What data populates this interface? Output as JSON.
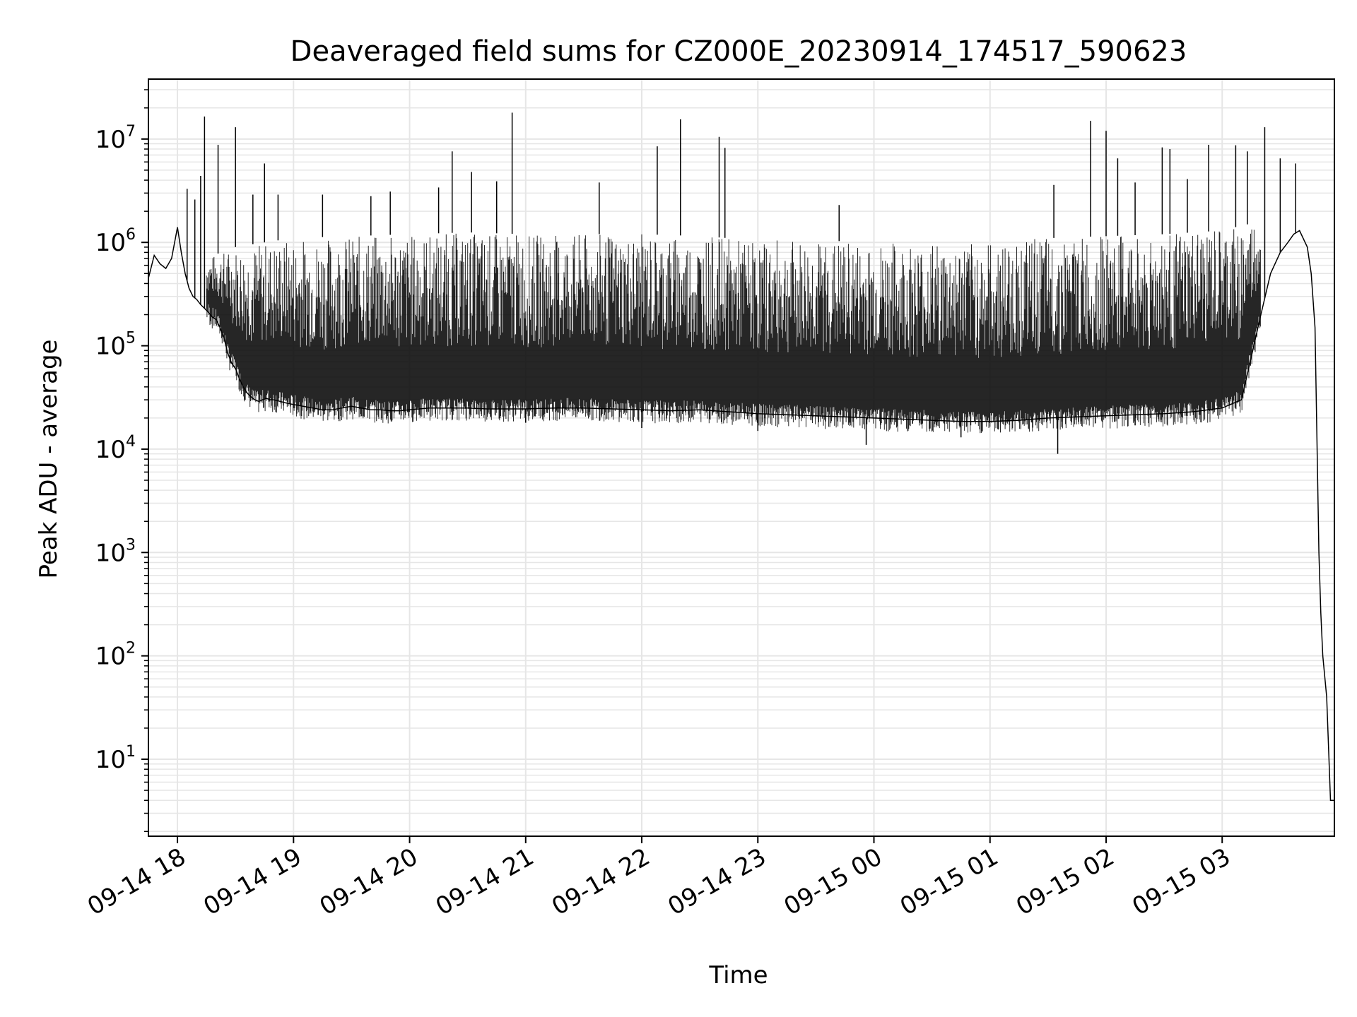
{
  "chart_data": {
    "type": "line",
    "title": "Deaveraged field sums for CZ000E_20230914_174517_590623",
    "xlabel": "Time",
    "ylabel": "Peak ADU - average",
    "yscale": "log",
    "grid": true,
    "line_color": "#000000",
    "grid_color": "#e6e6e6",
    "xlim": [
      "2023-09-14 17:45",
      "2023-09-15 03:58"
    ],
    "ylim": [
      1.8,
      38000000
    ],
    "x_ticks": [
      {
        "value": "2023-09-14 18:00",
        "label": "09-14 18"
      },
      {
        "value": "2023-09-14 19:00",
        "label": "09-14 19"
      },
      {
        "value": "2023-09-14 20:00",
        "label": "09-14 20"
      },
      {
        "value": "2023-09-14 21:00",
        "label": "09-14 21"
      },
      {
        "value": "2023-09-14 22:00",
        "label": "09-14 22"
      },
      {
        "value": "2023-09-14 23:00",
        "label": "09-14 23"
      },
      {
        "value": "2023-09-15 00:00",
        "label": "09-15 00"
      },
      {
        "value": "2023-09-15 01:00",
        "label": "09-15 01"
      },
      {
        "value": "2023-09-15 02:00",
        "label": "09-15 02"
      },
      {
        "value": "2023-09-15 03:00",
        "label": "09-15 03"
      }
    ],
    "y_ticks": [
      {
        "value": 10,
        "base": "10",
        "exp": "1"
      },
      {
        "value": 100,
        "base": "10",
        "exp": "2"
      },
      {
        "value": 1000,
        "base": "10",
        "exp": "3"
      },
      {
        "value": 10000,
        "base": "10",
        "exp": "4"
      },
      {
        "value": 100000,
        "base": "10",
        "exp": "5"
      },
      {
        "value": 1000000,
        "base": "10",
        "exp": "6"
      },
      {
        "value": 10000000,
        "base": "10",
        "exp": "7"
      }
    ],
    "series": [
      {
        "x": [
          "2023-09-14 17:45",
          "2023-09-14 17:48",
          "2023-09-14 17:51",
          "2023-09-14 17:54",
          "2023-09-14 17:57",
          "2023-09-14 18:00",
          "2023-09-14 18:02",
          "2023-09-14 18:04",
          "2023-09-14 18:06",
          "2023-09-14 18:08",
          "2023-09-14 18:10",
          "2023-09-14 18:12",
          "2023-09-14 18:14",
          "2023-09-14 18:16",
          "2023-09-14 18:18",
          "2023-09-14 18:20",
          "2023-09-14 18:22",
          "2023-09-14 18:24",
          "2023-09-14 18:26",
          "2023-09-14 18:28",
          "2023-09-14 18:30",
          "2023-09-14 18:32",
          "2023-09-14 18:34",
          "2023-09-14 18:36",
          "2023-09-14 18:38",
          "2023-09-14 18:40",
          "2023-09-14 18:42",
          "2023-09-14 18:44",
          "2023-09-14 18:46",
          "2023-09-14 18:48",
          "2023-09-14 18:50",
          "2023-09-14 18:53",
          "2023-09-14 18:56",
          "2023-09-14 19:00",
          "2023-09-14 19:05",
          "2023-09-14 19:10",
          "2023-09-14 19:15",
          "2023-09-14 19:20",
          "2023-09-14 19:25",
          "2023-09-14 19:30",
          "2023-09-14 19:35",
          "2023-09-14 19:40",
          "2023-09-14 19:45",
          "2023-09-14 19:50",
          "2023-09-14 19:55",
          "2023-09-14 20:00",
          "2023-09-14 20:10",
          "2023-09-14 20:20",
          "2023-09-14 20:30",
          "2023-09-14 20:40",
          "2023-09-14 20:50",
          "2023-09-14 21:00",
          "2023-09-14 21:15",
          "2023-09-14 21:30",
          "2023-09-14 21:45",
          "2023-09-14 22:00",
          "2023-09-14 22:15",
          "2023-09-14 22:30",
          "2023-09-14 22:45",
          "2023-09-14 23:00",
          "2023-09-14 23:15",
          "2023-09-14 23:30",
          "2023-09-14 23:45",
          "2023-09-15 00:00",
          "2023-09-15 00:15",
          "2023-09-15 00:30",
          "2023-09-15 00:45",
          "2023-09-15 01:00",
          "2023-09-15 01:15",
          "2023-09-15 01:30",
          "2023-09-15 01:45",
          "2023-09-15 02:00",
          "2023-09-15 02:15",
          "2023-09-15 02:30",
          "2023-09-15 02:45",
          "2023-09-15 03:00",
          "2023-09-15 03:10",
          "2023-09-15 03:20",
          "2023-09-15 03:25",
          "2023-09-15 03:30",
          "2023-09-15 03:34",
          "2023-09-15 03:37",
          "2023-09-15 03:40",
          "2023-09-15 03:44",
          "2023-09-15 03:46",
          "2023-09-15 03:48",
          "2023-09-15 03:50",
          "2023-09-15 03:51",
          "2023-09-15 03:52",
          "2023-09-15 03:54",
          "2023-09-15 03:56",
          "2023-09-15 03:58"
        ],
        "y": [
          450000,
          750000,
          620000,
          560000,
          700000,
          1400000,
          800000,
          500000,
          360000,
          300000,
          280000,
          250000,
          230000,
          210000,
          190000,
          180000,
          150000,
          120000,
          85000,
          68000,
          60000,
          48000,
          40000,
          35000,
          32000,
          30000,
          29000,
          30000,
          31000,
          30000,
          30000,
          29000,
          28000,
          27000,
          26000,
          25000,
          24000,
          24000,
          25000,
          26000,
          25000,
          24000,
          24000,
          23500,
          23500,
          24000,
          25000,
          25000,
          25000,
          24500,
          24500,
          24500,
          25000,
          25000,
          24500,
          24000,
          23500,
          24000,
          23000,
          22000,
          21500,
          21000,
          20500,
          20000,
          19500,
          19000,
          18500,
          18500,
          19000,
          20000,
          20500,
          21000,
          21500,
          22000,
          23000,
          25000,
          30000,
          200000,
          500000,
          800000,
          1000000,
          1200000,
          1300000,
          900000,
          500000,
          150000,
          1000,
          260,
          100,
          40,
          4,
          4
        ]
      }
    ],
    "envelope": {
      "x": [
        "2023-09-14 18:15",
        "2023-09-14 18:30",
        "2023-09-14 18:45",
        "2023-09-14 19:00",
        "2023-09-14 19:30",
        "2023-09-14 20:00",
        "2023-09-14 20:30",
        "2023-09-14 21:00",
        "2023-09-14 21:30",
        "2023-09-14 22:00",
        "2023-09-14 22:30",
        "2023-09-14 23:00",
        "2023-09-14 23:30",
        "2023-09-15 00:00",
        "2023-09-15 00:30",
        "2023-09-15 01:00",
        "2023-09-15 01:30",
        "2023-09-15 02:00",
        "2023-09-15 02:30",
        "2023-09-15 03:00",
        "2023-09-15 03:20"
      ],
      "upper": [
        700000,
        900000,
        1000000,
        1100000,
        1150000,
        1200000,
        1250000,
        1200000,
        1200000,
        1200000,
        1150000,
        1050000,
        1050000,
        1000000,
        1000000,
        1000000,
        1100000,
        1150000,
        1200000,
        1300000,
        1600000
      ]
    },
    "spikes": [
      {
        "x": "2023-09-14 18:05",
        "y": 3300000
      },
      {
        "x": "2023-09-14 18:09",
        "y": 2600000
      },
      {
        "x": "2023-09-14 18:12",
        "y": 4400000
      },
      {
        "x": "2023-09-14 18:14",
        "y": 16500000
      },
      {
        "x": "2023-09-14 18:21",
        "y": 8800000
      },
      {
        "x": "2023-09-14 18:30",
        "y": 13000000
      },
      {
        "x": "2023-09-14 18:39",
        "y": 2900000
      },
      {
        "x": "2023-09-14 18:45",
        "y": 5800000
      },
      {
        "x": "2023-09-14 18:52",
        "y": 2900000
      },
      {
        "x": "2023-09-14 19:15",
        "y": 2900000
      },
      {
        "x": "2023-09-14 19:40",
        "y": 2800000
      },
      {
        "x": "2023-09-14 19:50",
        "y": 3100000
      },
      {
        "x": "2023-09-14 20:15",
        "y": 3400000
      },
      {
        "x": "2023-09-14 20:22",
        "y": 7600000
      },
      {
        "x": "2023-09-14 20:32",
        "y": 4800000
      },
      {
        "x": "2023-09-14 20:45",
        "y": 3900000
      },
      {
        "x": "2023-09-14 20:53",
        "y": 18000000
      },
      {
        "x": "2023-09-14 21:38",
        "y": 3800000
      },
      {
        "x": "2023-09-14 22:08",
        "y": 8500000
      },
      {
        "x": "2023-09-14 22:20",
        "y": 15500000
      },
      {
        "x": "2023-09-14 22:40",
        "y": 10500000
      },
      {
        "x": "2023-09-14 22:43",
        "y": 8200000
      },
      {
        "x": "2023-09-14 23:42",
        "y": 2300000
      },
      {
        "x": "2023-09-15 01:33",
        "y": 3600000
      },
      {
        "x": "2023-09-15 01:52",
        "y": 15000000
      },
      {
        "x": "2023-09-15 02:00",
        "y": 12000000
      },
      {
        "x": "2023-09-15 02:06",
        "y": 6500000
      },
      {
        "x": "2023-09-15 02:15",
        "y": 3800000
      },
      {
        "x": "2023-09-15 02:29",
        "y": 8300000
      },
      {
        "x": "2023-09-15 02:33",
        "y": 8000000
      },
      {
        "x": "2023-09-15 02:42",
        "y": 4100000
      },
      {
        "x": "2023-09-15 02:53",
        "y": 8800000
      },
      {
        "x": "2023-09-15 03:07",
        "y": 8700000
      },
      {
        "x": "2023-09-15 03:13",
        "y": 7600000
      },
      {
        "x": "2023-09-15 03:22",
        "y": 13000000
      },
      {
        "x": "2023-09-15 03:30",
        "y": 6500000
      },
      {
        "x": "2023-09-15 03:38",
        "y": 5800000
      }
    ],
    "dips": [
      {
        "x": "2023-09-14 21:00",
        "y": 18000
      },
      {
        "x": "2023-09-14 22:00",
        "y": 16000
      },
      {
        "x": "2023-09-14 23:00",
        "y": 15000
      },
      {
        "x": "2023-09-14 23:56",
        "y": 11000
      },
      {
        "x": "2023-09-15 00:45",
        "y": 13000
      },
      {
        "x": "2023-09-15 01:35",
        "y": 9000
      },
      {
        "x": "2023-09-15 02:15",
        "y": 17000
      }
    ]
  }
}
